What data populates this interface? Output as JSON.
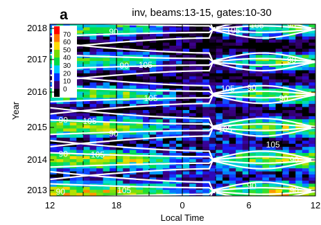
{
  "panel_label": "a",
  "chart_data": {
    "type": "heatmap",
    "title": "inv, beams:13-15, gates:10-30",
    "xlabel": "Local Time",
    "ylabel": "Year",
    "x_ticks": [
      "12",
      "18",
      "0",
      "6",
      "12"
    ],
    "y_ticks": [
      "2013",
      "2014",
      "2015",
      "2016",
      "2017",
      "2018"
    ],
    "xlim": [
      "12",
      "12"
    ],
    "ylim": [
      2012.9,
      2018.15
    ],
    "colorbar": {
      "ticks": [
        "70",
        "60",
        "50",
        "40",
        "30",
        "20",
        "10",
        "0"
      ],
      "colors": [
        "#ff0000",
        "#ff7700",
        "#ffdd00",
        "#77dd00",
        "#00dd44",
        "#00ccff",
        "#0033ff",
        "#3a0070",
        "#000000"
      ]
    },
    "contours": [
      {
        "label": "90"
      },
      {
        "label": "105"
      }
    ],
    "contour_labels": [
      "105",
      "90",
      "90",
      "105",
      "90",
      "90",
      "105",
      "105",
      "90",
      "105",
      "90",
      "105",
      "90",
      "105",
      "90",
      "105",
      "90",
      "105",
      "90",
      "90",
      "105",
      "90",
      "90"
    ]
  }
}
